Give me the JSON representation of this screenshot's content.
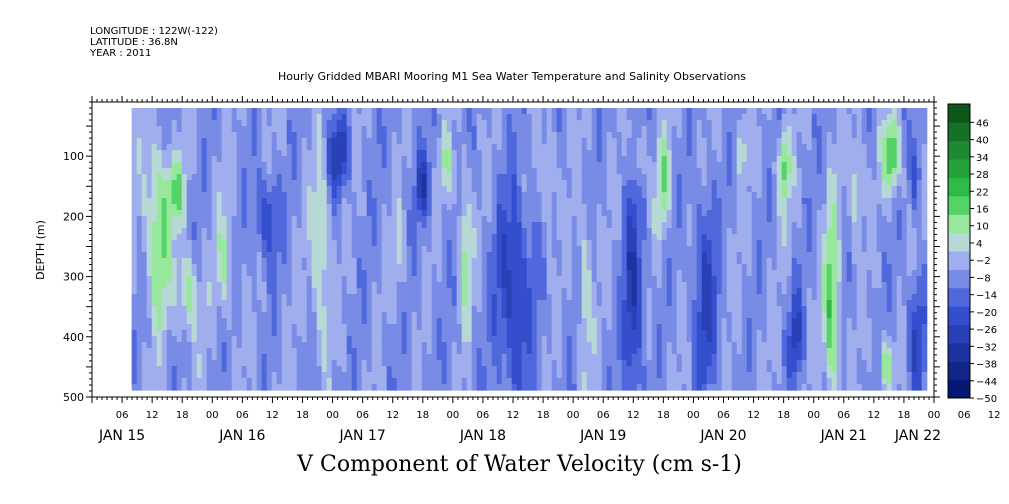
{
  "header": {
    "longitude": "LONGITUDE : 122W(-122)",
    "latitude": "LATITUDE : 36.8N",
    "year": "YEAR : 2011"
  },
  "chart_data": {
    "type": "heatmap",
    "title": "Hourly Gridded MBARI Mooring M1 Sea Water Temperature and Salinity Observations",
    "xlabel": "V Component of Water Velocity (cm s-1)",
    "ylabel": "DEPTH (m)",
    "x_range_days": [
      0,
      7.0
    ],
    "data_x_range_days": [
      0.33,
      6.9
    ],
    "y_ticks": [
      100,
      200,
      300,
      400,
      500
    ],
    "ylim": [
      500,
      10
    ],
    "data_depth_range": [
      20,
      485
    ],
    "hour_tick_labels": [
      "06",
      "12",
      "18",
      "00",
      "06",
      "12",
      "18",
      "00",
      "06",
      "12",
      "18",
      "00",
      "06",
      "12",
      "18",
      "00",
      "06",
      "12",
      "18",
      "00",
      "06",
      "12",
      "18",
      "00",
      "06",
      "12",
      "18",
      "00",
      "06",
      "12",
      "18",
      "00",
      "06",
      "12",
      "18",
      "00",
      "06",
      "12",
      "18",
      "00"
    ],
    "date_labels": [
      "JAN 15",
      "JAN 16",
      "JAN 17",
      "JAN 18",
      "JAN 19",
      "JAN 20",
      "JAN 21",
      "JAN 22"
    ],
    "colorbar_levels": [
      -50,
      -44,
      -38,
      -32,
      -26,
      -20,
      -14,
      -8,
      -2,
      4,
      10,
      16,
      22,
      28,
      34,
      40,
      46
    ],
    "colorbar_labels": [
      "46",
      "40",
      "34",
      "28",
      "22",
      "16",
      "10",
      "4",
      "−2",
      "−8",
      "−14",
      "−20",
      "−26",
      "−32",
      "−38",
      "−44",
      "−50"
    ],
    "colors": {
      "neg_dark": "#001066",
      "neg_mid": "#3a56d8",
      "neg_light": "#b6bff2",
      "pos_light": "#b8f2b8",
      "pos_mid": "#32c84a",
      "pos_dark": "#0a4a16",
      "background": "#9fb0ee"
    },
    "velocity_features": [
      {
        "day": 0.55,
        "depth": 230,
        "sd": 0.1,
        "sz": 140,
        "v": 10
      },
      {
        "day": 0.8,
        "depth": 330,
        "sd": 0.08,
        "sz": 70,
        "v": 8
      },
      {
        "day": 0.7,
        "depth": 160,
        "sd": 0.08,
        "sz": 50,
        "v": 8
      },
      {
        "day": 1.1,
        "depth": 280,
        "sd": 0.07,
        "sz": 90,
        "v": 6
      },
      {
        "day": 1.45,
        "depth": 200,
        "sd": 0.1,
        "sz": 70,
        "v": -8
      },
      {
        "day": 1.9,
        "depth": 250,
        "sd": 0.07,
        "sz": 150,
        "v": 8
      },
      {
        "day": 2.05,
        "depth": 100,
        "sd": 0.09,
        "sz": 60,
        "v": -10
      },
      {
        "day": 2.75,
        "depth": 150,
        "sd": 0.06,
        "sz": 60,
        "v": -9
      },
      {
        "day": 2.55,
        "depth": 260,
        "sd": 0.05,
        "sz": 60,
        "v": 5
      },
      {
        "day": 2.95,
        "depth": 110,
        "sd": 0.05,
        "sz": 50,
        "v": 5
      },
      {
        "day": 3.1,
        "depth": 250,
        "sd": 0.05,
        "sz": 110,
        "v": 7
      },
      {
        "day": 3.5,
        "depth": 330,
        "sd": 0.15,
        "sz": 180,
        "v": -9
      },
      {
        "day": 3.8,
        "depth": 140,
        "sd": 0.05,
        "sz": 70,
        "v": 6
      },
      {
        "day": 4.1,
        "depth": 330,
        "sd": 0.05,
        "sz": 130,
        "v": 6
      },
      {
        "day": 4.5,
        "depth": 330,
        "sd": 0.08,
        "sz": 200,
        "v": -10
      },
      {
        "day": 4.55,
        "depth": 110,
        "sd": 0.05,
        "sz": 60,
        "v": 6
      },
      {
        "day": 4.75,
        "depth": 150,
        "sd": 0.05,
        "sz": 80,
        "v": 8
      },
      {
        "day": 5.1,
        "depth": 330,
        "sd": 0.1,
        "sz": 170,
        "v": -8
      },
      {
        "day": 5.4,
        "depth": 80,
        "sd": 0.04,
        "sz": 50,
        "v": 5
      },
      {
        "day": 5.75,
        "depth": 120,
        "sd": 0.05,
        "sz": 60,
        "v": 10
      },
      {
        "day": 5.85,
        "depth": 400,
        "sd": 0.06,
        "sz": 80,
        "v": -8
      },
      {
        "day": 6.15,
        "depth": 350,
        "sd": 0.06,
        "sz": 150,
        "v": 12
      },
      {
        "day": 6.35,
        "depth": 150,
        "sd": 0.06,
        "sz": 90,
        "v": 6
      },
      {
        "day": 6.65,
        "depth": 100,
        "sd": 0.07,
        "sz": 60,
        "v": 12
      },
      {
        "day": 6.6,
        "depth": 450,
        "sd": 0.06,
        "sz": 40,
        "v": 8
      },
      {
        "day": 6.85,
        "depth": 400,
        "sd": 0.07,
        "sz": 100,
        "v": -8
      },
      {
        "day": 6.85,
        "depth": 130,
        "sd": 0.04,
        "sz": 60,
        "v": -8
      }
    ]
  }
}
